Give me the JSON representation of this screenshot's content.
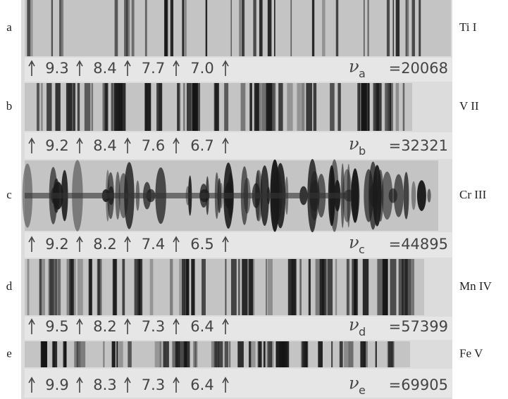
{
  "panels": [
    {
      "letter": "a",
      "element": "Ti I",
      "scale": [
        "9.3",
        "8.4",
        "7.7",
        "7.0"
      ],
      "nu": "ν",
      "subscript": "a",
      "rhs": "=20068"
    },
    {
      "letter": "b",
      "element": "V II",
      "scale": [
        "9.2",
        "8.4",
        "7.6",
        "6.7"
      ],
      "nu": "ν",
      "subscript": "b",
      "rhs": "=32321"
    },
    {
      "letter": "c",
      "element": "Cr III",
      "scale": [
        "9.2",
        "8.2",
        "7.4",
        "6.5"
      ],
      "nu": "ν",
      "subscript": "c",
      "rhs": "=44895"
    },
    {
      "letter": "d",
      "element": "Mn IV",
      "scale": [
        "9.5",
        "8.2",
        "7.3",
        "6.4"
      ],
      "nu": "ν",
      "subscript": "d",
      "rhs": "=57399"
    },
    {
      "letter": "e",
      "element": "Fe V",
      "scale": [
        "9.9",
        "8.3",
        "7.3",
        "6.4"
      ],
      "nu": "ν",
      "subscript": "e",
      "rhs": "=69905"
    }
  ]
}
